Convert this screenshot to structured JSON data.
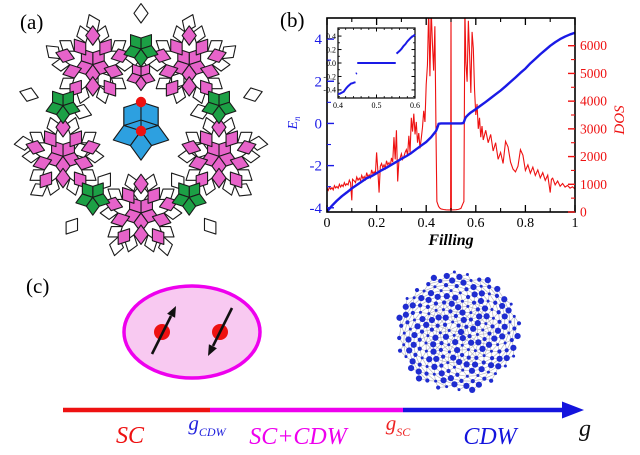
{
  "figure": {
    "panel_a_label": "(a)",
    "panel_b_label": "(b)",
    "panel_c_label": "(c)"
  },
  "colors": {
    "curve_blue": "#1a1ae6",
    "curve_red": "#ee1111",
    "magenta": "#ee00ee",
    "tile_pink": "#e763ca",
    "tile_blue": "#2da0e0",
    "tile_green": "#1ca045",
    "tile_white": "#ffffff",
    "tile_outline": "#1a1a1a",
    "pair_ellipse_fill": "#f8c9f1",
    "electron_red": "#ee1111",
    "lattice_dot_blue": "#1f2cd0",
    "lattice_bond_gray": "#b9b9c4",
    "axis_black": "#000000"
  },
  "chart_data": {
    "type": "line",
    "title": "",
    "xlabel": "Filling",
    "ylabel_left_main": "E",
    "ylabel_left_sub": "n",
    "ylabel_right": "DOS",
    "xlim": [
      0,
      1
    ],
    "ylim_left": [
      -4.2,
      5.0
    ],
    "ylim_right": [
      0,
      7000
    ],
    "x_ticks": [
      0,
      0.2,
      0.4,
      0.6,
      0.8,
      1
    ],
    "x_tick_labels": [
      "0",
      "0.2",
      "0.4",
      "0.6",
      "0.8",
      "1"
    ],
    "x_minor_ticks": [
      0.1,
      0.3,
      0.5,
      0.7,
      0.9
    ],
    "y_ticks_left": [
      -4,
      -2,
      0,
      2,
      4
    ],
    "y_tick_labels_left": [
      "-4",
      "-2",
      "0",
      "2",
      "4"
    ],
    "y_minor_ticks_left": [
      -3,
      -1,
      1,
      3
    ],
    "y_ticks_right": [
      0,
      1000,
      2000,
      3000,
      4000,
      5000,
      6000
    ],
    "y_tick_labels_right": [
      "0",
      "1000",
      "2000",
      "3000",
      "4000",
      "5000",
      "6000"
    ],
    "y_minor_ticks_right": [
      500,
      1500,
      2500,
      3500,
      4500,
      5500
    ],
    "grid": false,
    "legend": "none",
    "series": [
      {
        "name": "E_n",
        "axis": "left",
        "color": "#1a1ae6",
        "points": [
          [
            0,
            -4.18
          ],
          [
            0.02,
            -3.9
          ],
          [
            0.04,
            -3.66
          ],
          [
            0.06,
            -3.45
          ],
          [
            0.08,
            -3.27
          ],
          [
            0.1,
            -3.08
          ],
          [
            0.12,
            -2.92
          ],
          [
            0.14,
            -2.76
          ],
          [
            0.16,
            -2.6
          ],
          [
            0.18,
            -2.5
          ],
          [
            0.2,
            -2.36
          ],
          [
            0.22,
            -2.22
          ],
          [
            0.24,
            -2.1
          ],
          [
            0.26,
            -1.96
          ],
          [
            0.28,
            -1.82
          ],
          [
            0.3,
            -1.68
          ],
          [
            0.32,
            -1.55
          ],
          [
            0.34,
            -1.4
          ],
          [
            0.36,
            -1.22
          ],
          [
            0.38,
            -1.05
          ],
          [
            0.4,
            -0.88
          ],
          [
            0.42,
            -0.65
          ],
          [
            0.43,
            -0.5
          ],
          [
            0.44,
            -0.35
          ],
          [
            0.445,
            -0.2
          ],
          [
            0.448,
            -0.1
          ],
          [
            0.45,
            -0.02
          ],
          [
            0.46,
            0
          ],
          [
            0.48,
            0
          ],
          [
            0.5,
            0
          ],
          [
            0.52,
            0
          ],
          [
            0.54,
            0
          ],
          [
            0.55,
            0.02
          ],
          [
            0.553,
            0.1
          ],
          [
            0.556,
            0.2
          ],
          [
            0.56,
            0.3
          ],
          [
            0.57,
            0.42
          ],
          [
            0.58,
            0.52
          ],
          [
            0.6,
            0.68
          ],
          [
            0.62,
            0.85
          ],
          [
            0.64,
            1.02
          ],
          [
            0.66,
            1.2
          ],
          [
            0.68,
            1.38
          ],
          [
            0.7,
            1.56
          ],
          [
            0.72,
            1.76
          ],
          [
            0.74,
            1.97
          ],
          [
            0.76,
            2.18
          ],
          [
            0.78,
            2.4
          ],
          [
            0.8,
            2.6
          ],
          [
            0.82,
            2.85
          ],
          [
            0.84,
            3.06
          ],
          [
            0.86,
            3.28
          ],
          [
            0.88,
            3.48
          ],
          [
            0.9,
            3.68
          ],
          [
            0.92,
            3.85
          ],
          [
            0.94,
            4.0
          ],
          [
            0.96,
            4.12
          ],
          [
            0.98,
            4.22
          ],
          [
            1,
            4.3
          ]
        ]
      },
      {
        "name": "DOS",
        "axis": "right",
        "color": "#ee1111",
        "points": [
          [
            0,
            850
          ],
          [
            0.005,
            780
          ],
          [
            0.01,
            900
          ],
          [
            0.015,
            820
          ],
          [
            0.02,
            880
          ],
          [
            0.025,
            800
          ],
          [
            0.03,
            950
          ],
          [
            0.035,
            870
          ],
          [
            0.04,
            920
          ],
          [
            0.045,
            860
          ],
          [
            0.05,
            1000
          ],
          [
            0.055,
            900
          ],
          [
            0.06,
            980
          ],
          [
            0.065,
            920
          ],
          [
            0.07,
            1060
          ],
          [
            0.075,
            960
          ],
          [
            0.08,
            1020
          ],
          [
            0.085,
            980
          ],
          [
            0.09,
            1150
          ],
          [
            0.095,
            1050
          ],
          [
            0.1,
            420
          ],
          [
            0.103,
            1180
          ],
          [
            0.11,
            1120
          ],
          [
            0.115,
            1060
          ],
          [
            0.12,
            1260
          ],
          [
            0.125,
            1150
          ],
          [
            0.13,
            1220
          ],
          [
            0.135,
            1140
          ],
          [
            0.14,
            1320
          ],
          [
            0.145,
            1200
          ],
          [
            0.15,
            1280
          ],
          [
            0.155,
            1180
          ],
          [
            0.16,
            1420
          ],
          [
            0.165,
            1260
          ],
          [
            0.17,
            1340
          ],
          [
            0.175,
            1240
          ],
          [
            0.18,
            1520
          ],
          [
            0.185,
            1380
          ],
          [
            0.19,
            1450
          ],
          [
            0.195,
            1350
          ],
          [
            0.2,
            2150
          ],
          [
            0.205,
            1500
          ],
          [
            0.21,
            700
          ],
          [
            0.215,
            1650
          ],
          [
            0.22,
            1750
          ],
          [
            0.225,
            1600
          ],
          [
            0.23,
            1700
          ],
          [
            0.235,
            1580
          ],
          [
            0.24,
            1850
          ],
          [
            0.245,
            1700
          ],
          [
            0.25,
            1780
          ],
          [
            0.255,
            1650
          ],
          [
            0.26,
            1950
          ],
          [
            0.265,
            1800
          ],
          [
            0.27,
            2700
          ],
          [
            0.275,
            1900
          ],
          [
            0.28,
            2950
          ],
          [
            0.285,
            1100
          ],
          [
            0.29,
            1850
          ],
          [
            0.295,
            1950
          ],
          [
            0.3,
            2100
          ],
          [
            0.305,
            1900
          ],
          [
            0.31,
            2000
          ],
          [
            0.315,
            2150
          ],
          [
            0.32,
            2250
          ],
          [
            0.325,
            2050
          ],
          [
            0.33,
            2750
          ],
          [
            0.335,
            2150
          ],
          [
            0.34,
            3400
          ],
          [
            0.345,
            2900
          ],
          [
            0.35,
            3550
          ],
          [
            0.355,
            2800
          ],
          [
            0.36,
            3250
          ],
          [
            0.365,
            2500
          ],
          [
            0.37,
            2850
          ],
          [
            0.375,
            2300
          ],
          [
            0.38,
            2650
          ],
          [
            0.385,
            3050
          ],
          [
            0.39,
            3650
          ],
          [
            0.395,
            3250
          ],
          [
            0.4,
            4600
          ],
          [
            0.405,
            5300
          ],
          [
            0.41,
            7300
          ],
          [
            0.415,
            4900
          ],
          [
            0.42,
            7300
          ],
          [
            0.425,
            6100
          ],
          [
            0.43,
            5100
          ],
          [
            0.435,
            6700
          ],
          [
            0.44,
            2500
          ],
          [
            0.443,
            380
          ],
          [
            0.446,
            300
          ],
          [
            0.45,
            200
          ],
          [
            0.455,
            140
          ],
          [
            0.46,
            110
          ],
          [
            0.47,
            90
          ],
          [
            0.48,
            80
          ],
          [
            0.49,
            75
          ],
          [
            0.4985,
            75
          ],
          [
            0.5,
            7300
          ],
          [
            0.5015,
            75
          ],
          [
            0.51,
            80
          ],
          [
            0.52,
            85
          ],
          [
            0.53,
            95
          ],
          [
            0.54,
            130
          ],
          [
            0.548,
            300
          ],
          [
            0.552,
            380
          ],
          [
            0.556,
            7300
          ],
          [
            0.56,
            5400
          ],
          [
            0.565,
            4700
          ],
          [
            0.57,
            6900
          ],
          [
            0.575,
            5700
          ],
          [
            0.58,
            4300
          ],
          [
            0.585,
            6500
          ],
          [
            0.59,
            5900
          ],
          [
            0.595,
            4400
          ],
          [
            0.6,
            3500
          ],
          [
            0.605,
            3900
          ],
          [
            0.61,
            3000
          ],
          [
            0.615,
            3400
          ],
          [
            0.62,
            2700
          ],
          [
            0.625,
            3100
          ],
          [
            0.63,
            2600
          ],
          [
            0.64,
            2950
          ],
          [
            0.65,
            2500
          ],
          [
            0.66,
            2800
          ],
          [
            0.67,
            2200
          ],
          [
            0.68,
            2500
          ],
          [
            0.69,
            1900
          ],
          [
            0.7,
            2150
          ],
          [
            0.71,
            1750
          ],
          [
            0.72,
            2550
          ],
          [
            0.73,
            2350
          ],
          [
            0.74,
            1800
          ],
          [
            0.75,
            1550
          ],
          [
            0.76,
            1450
          ],
          [
            0.77,
            1650
          ],
          [
            0.78,
            2250
          ],
          [
            0.79,
            2050
          ],
          [
            0.8,
            1500
          ],
          [
            0.81,
            1700
          ],
          [
            0.82,
            1400
          ],
          [
            0.83,
            1620
          ],
          [
            0.84,
            1320
          ],
          [
            0.85,
            1520
          ],
          [
            0.86,
            1230
          ],
          [
            0.87,
            1420
          ],
          [
            0.88,
            1140
          ],
          [
            0.89,
            1330
          ],
          [
            0.9,
            700
          ],
          [
            0.905,
            1180
          ],
          [
            0.91,
            1220
          ],
          [
            0.92,
            980
          ],
          [
            0.93,
            1120
          ],
          [
            0.94,
            930
          ],
          [
            0.95,
            1030
          ],
          [
            0.96,
            900
          ],
          [
            0.97,
            960
          ],
          [
            0.98,
            860
          ],
          [
            0.99,
            910
          ],
          [
            1,
            830
          ]
        ]
      }
    ],
    "inset": {
      "xlim": [
        0.4,
        0.6
      ],
      "ylim": [
        -0.52,
        0.52
      ],
      "x_ticks": [
        0.4,
        0.5,
        0.6
      ],
      "x_tick_labels": [
        "0.4",
        "0.5",
        "0.6"
      ],
      "x_minor_ticks": [
        0.42,
        0.44,
        0.46,
        0.48,
        0.52,
        0.54,
        0.56,
        0.58
      ],
      "y_ticks": [
        -0.4,
        -0.2,
        0,
        0.2,
        0.4
      ],
      "y_tick_labels": [
        "-0.4",
        "-0.2",
        "0.0",
        "0.2",
        "0.4"
      ],
      "y_minor_ticks": [
        -0.5,
        -0.3,
        -0.1,
        0.1,
        0.3,
        0.5
      ],
      "series_color": "#1a1ae6",
      "segments": [
        [
          [
            0.4,
            -0.46
          ],
          [
            0.405,
            -0.455
          ],
          [
            0.41,
            -0.44
          ],
          [
            0.415,
            -0.425
          ],
          [
            0.418,
            -0.4
          ],
          [
            0.422,
            -0.37
          ],
          [
            0.426,
            -0.345
          ],
          [
            0.43,
            -0.325
          ],
          [
            0.434,
            -0.305
          ],
          [
            0.438,
            -0.3
          ],
          [
            0.442,
            -0.29
          ],
          [
            0.4455,
            -0.285
          ]
        ],
        [
          [
            0.4465,
            -0.16
          ],
          [
            0.449,
            -0.15
          ]
        ],
        [
          [
            0.45,
            0.0
          ],
          [
            0.55,
            0.0
          ]
        ],
        [
          [
            0.552,
            0.14
          ],
          [
            0.556,
            0.16
          ],
          [
            0.56,
            0.18
          ],
          [
            0.565,
            0.21
          ],
          [
            0.57,
            0.25
          ],
          [
            0.575,
            0.28
          ],
          [
            0.58,
            0.32
          ],
          [
            0.585,
            0.35
          ],
          [
            0.59,
            0.38
          ],
          [
            0.595,
            0.4
          ],
          [
            0.6,
            0.42
          ]
        ]
      ]
    }
  },
  "phase_diagram": {
    "axis_label": "g",
    "regions": [
      {
        "label": "SC",
        "color": "#ee1111"
      },
      {
        "label": "SC+CDW",
        "color": "#ee00ee"
      },
      {
        "label": "CDW",
        "color": "#1414dd"
      }
    ],
    "boundaries": [
      {
        "main": "g",
        "sub": "CDW",
        "color": "#2222dd"
      },
      {
        "main": "g",
        "sub": "SC",
        "color": "#ee2222"
      }
    ],
    "pair_spins": [
      "up",
      "down"
    ]
  }
}
